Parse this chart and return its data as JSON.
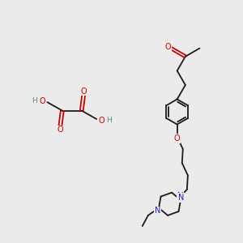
{
  "bg_color": "#ebebeb",
  "bond_color": "#1a1a1a",
  "oxygen_color": "#cc0000",
  "nitrogen_color": "#2222cc",
  "hydrogen_color": "#5a8888",
  "line_width": 1.3,
  "font_size": 6.5,
  "fig_width": 3.0,
  "fig_height": 3.0,
  "dpi": 100,
  "xlim": [
    0,
    10
  ],
  "ylim": [
    0,
    10
  ]
}
